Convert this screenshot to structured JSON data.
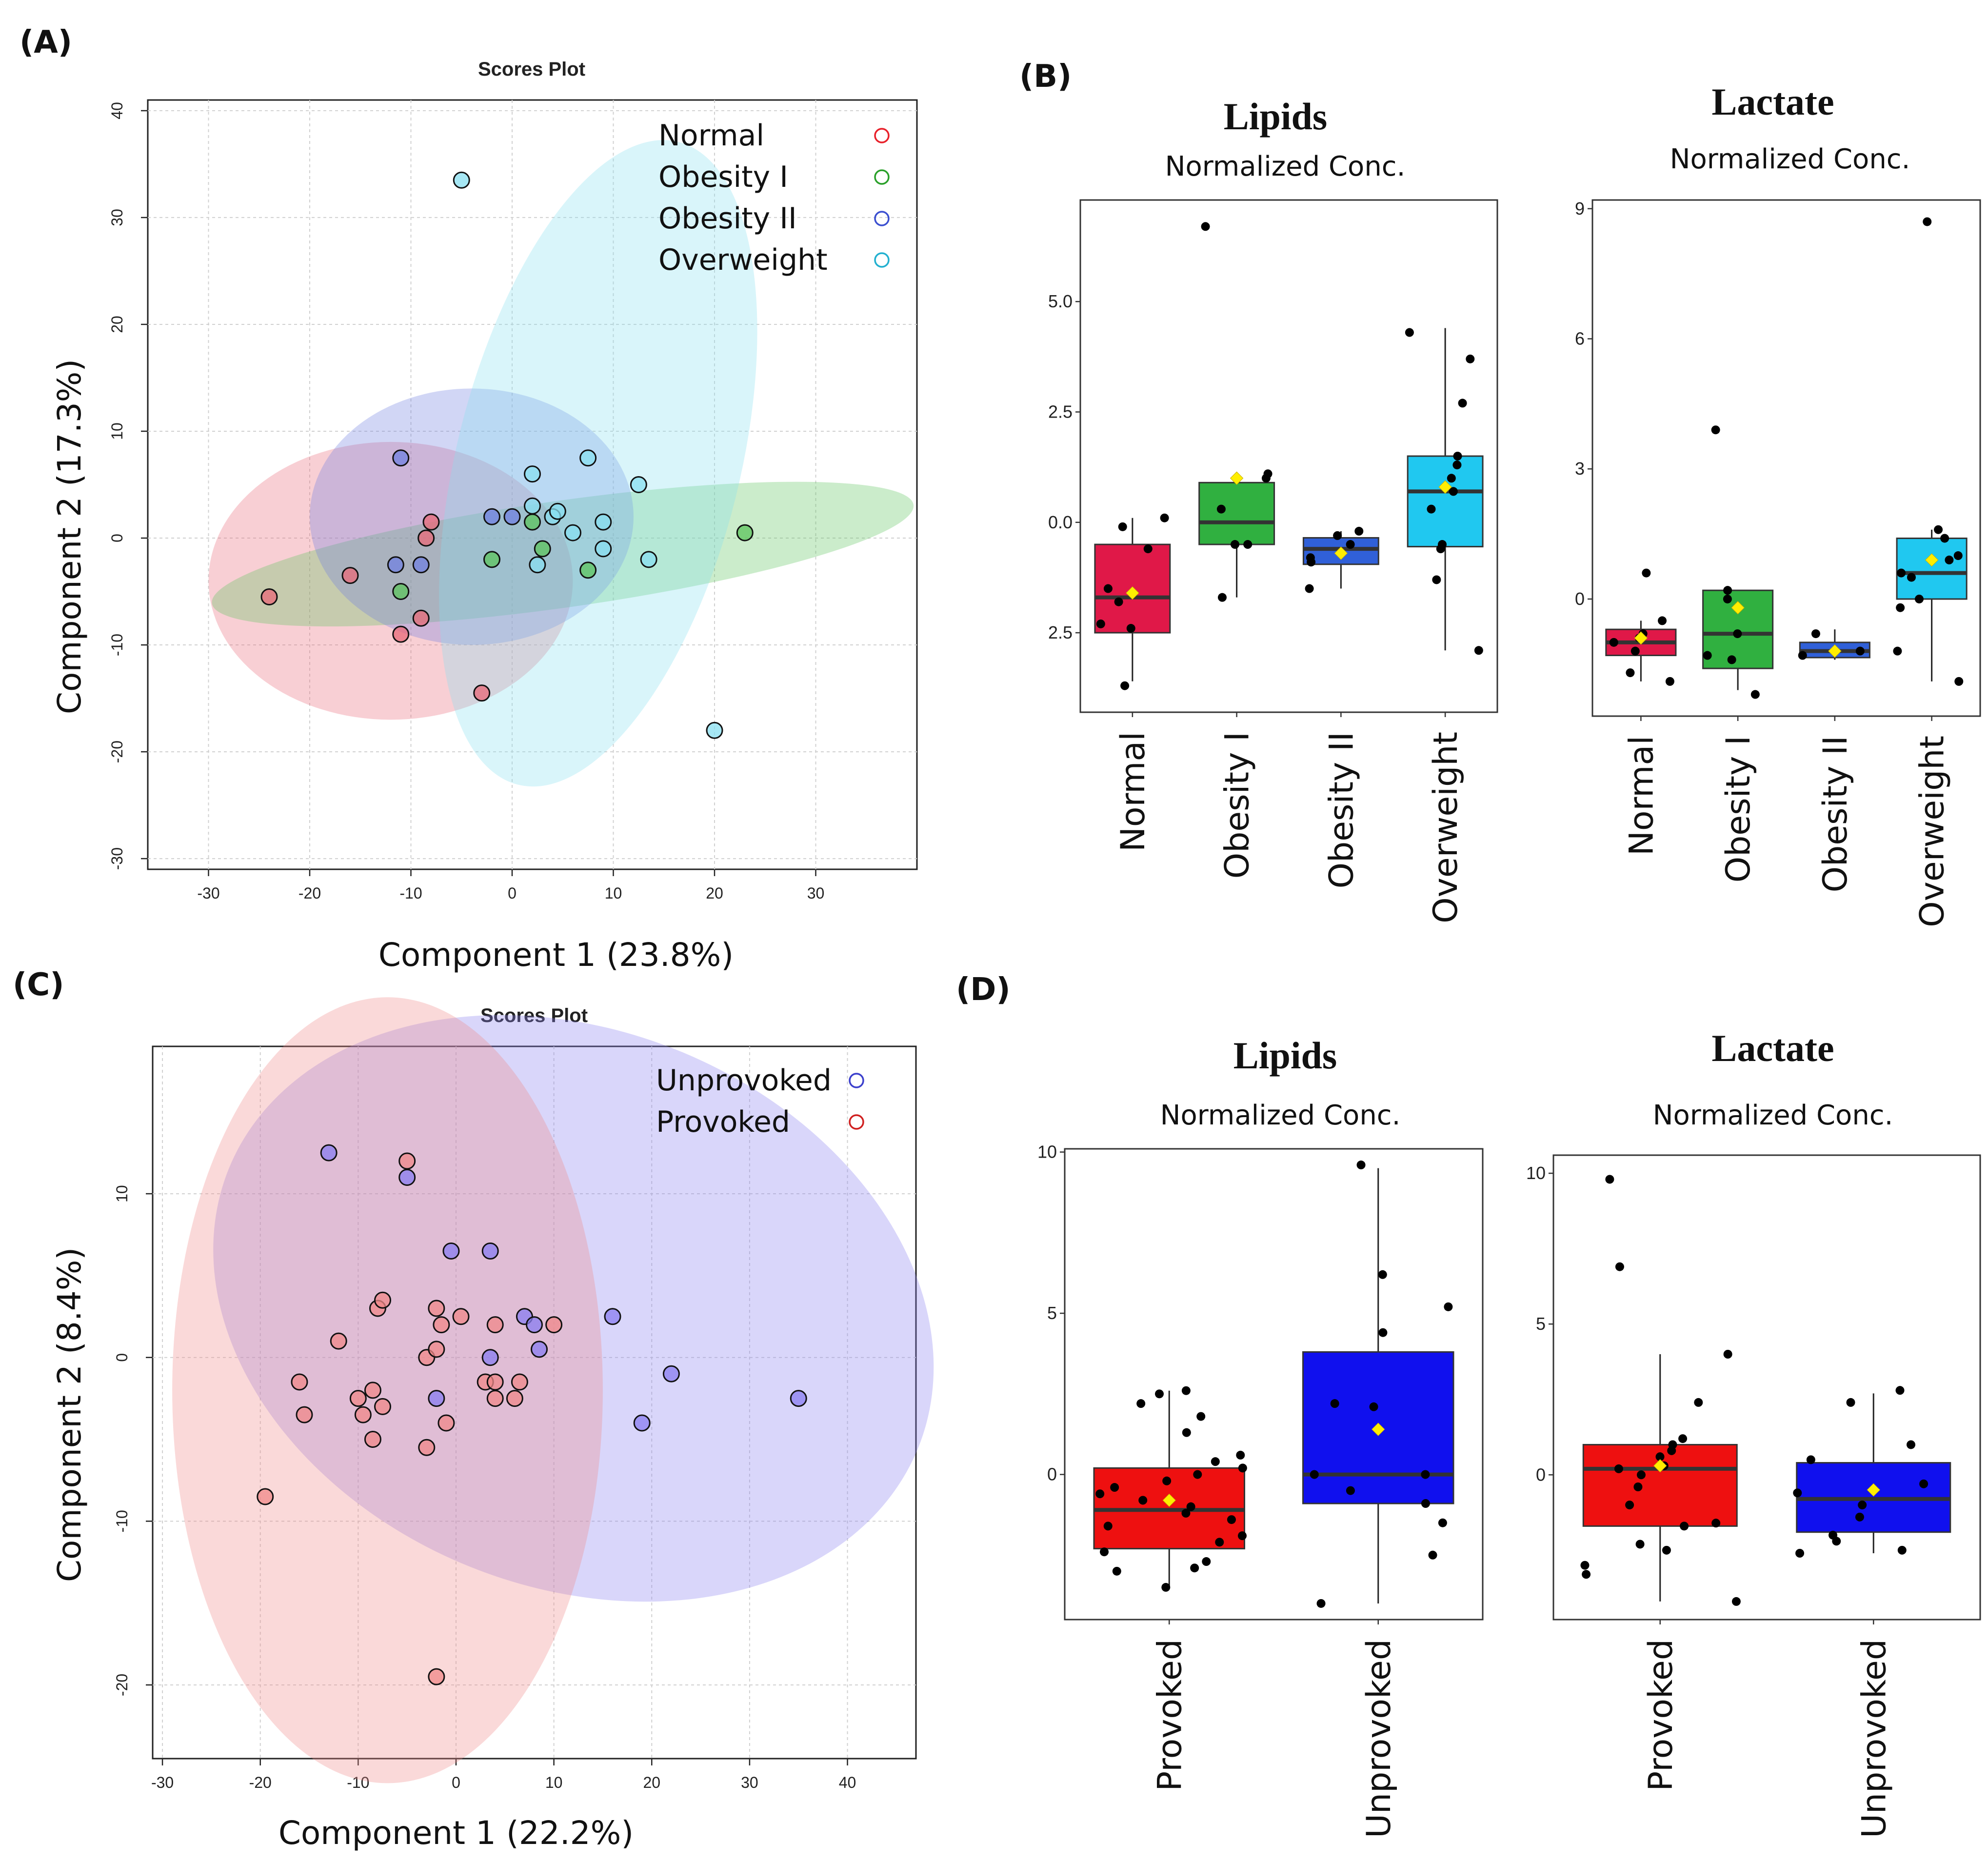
{
  "panels": {
    "A": "(A)",
    "B": "(B)",
    "C": "(C)",
    "D": "(D)"
  },
  "chart_data": [
    {
      "id": "A",
      "type": "scatter",
      "title": "Scores Plot",
      "xlabel": "Component 1 (23.8%)",
      "ylabel": "Component 2 (17.3%)",
      "xlim": [
        -36,
        40
      ],
      "ylim": [
        -31,
        41
      ],
      "xticks": [
        -30,
        -20,
        -10,
        0,
        10,
        20,
        30
      ],
      "yticks": [
        -30,
        -20,
        -10,
        0,
        10,
        20,
        30,
        40
      ],
      "legend_position": "top-right",
      "series": [
        {
          "name": "Normal",
          "color": "#e8202a",
          "fill": "#e86a78",
          "ellipse": {
            "cx": -12,
            "cy": -4,
            "rx": 18,
            "ry": 13,
            "angle": 0
          },
          "points": [
            [
              -24,
              -5.5
            ],
            [
              -16,
              -3.5
            ],
            [
              -11,
              -9
            ],
            [
              -9,
              -7.5
            ],
            [
              -8.5,
              0
            ],
            [
              -8,
              1.5
            ],
            [
              -3,
              -14.5
            ]
          ]
        },
        {
          "name": "Obesity I",
          "color": "#2aa02a",
          "fill": "#5cc45c",
          "ellipse": {
            "cx": 5,
            "cy": -1.5,
            "rx": 35,
            "ry": 5,
            "angle": -8
          },
          "points": [
            [
              -11,
              -5
            ],
            [
              -2,
              -2
            ],
            [
              2,
              1.5
            ],
            [
              3,
              -1
            ],
            [
              7.5,
              -3
            ],
            [
              23,
              0.5
            ]
          ]
        },
        {
          "name": "Obesity II",
          "color": "#3b4fd0",
          "fill": "#7080e0",
          "ellipse": {
            "cx": -4,
            "cy": 2,
            "rx": 16,
            "ry": 12,
            "angle": 0
          },
          "points": [
            [
              -11,
              7.5
            ],
            [
              -11.5,
              -2.5
            ],
            [
              -9,
              -2.5
            ],
            [
              -2,
              2
            ],
            [
              0,
              2
            ]
          ]
        },
        {
          "name": "Overweight",
          "color": "#22b0d0",
          "fill": "#88dff0",
          "ellipse": {
            "cx": 8.5,
            "cy": 7,
            "rx": 14,
            "ry": 31,
            "angle": 14
          },
          "points": [
            [
              -5,
              33.5
            ],
            [
              2,
              6
            ],
            [
              2,
              3
            ],
            [
              2.5,
              -2.5
            ],
            [
              4,
              2
            ],
            [
              4.5,
              2.5
            ],
            [
              6,
              0.5
            ],
            [
              7.5,
              7.5
            ],
            [
              9,
              1.5
            ],
            [
              9,
              -1
            ],
            [
              12.5,
              5
            ],
            [
              13.5,
              -2
            ],
            [
              20,
              -18
            ]
          ]
        }
      ]
    },
    {
      "id": "B",
      "type": "box",
      "categories": [
        "Normal",
        "Obesity I",
        "Obesity II",
        "Overweight"
      ],
      "plots": [
        {
          "title": "Lipids",
          "subtitle": "Normalized Conc.",
          "ylim": [
            -4.3,
            7.3
          ],
          "yticks": [
            {
              "v": 5,
              "label": "5.0"
            },
            {
              "v": 2.5,
              "label": "2.5"
            },
            {
              "v": 0,
              "label": "0.0"
            },
            {
              "v": -2.5,
              "label": "2.5"
            }
          ],
          "colors": [
            "#e01848",
            "#30b040",
            "#3060d8",
            "#20c8f0"
          ],
          "boxes": [
            {
              "min": -3.6,
              "q1": -2.5,
              "median": -1.7,
              "q3": -0.5,
              "max": 0.1,
              "mean": -1.6,
              "points": [
                -3.7,
                -2.4,
                -2.3,
                -1.8,
                -1.5,
                -0.6,
                0.1,
                -0.1
              ]
            },
            {
              "min": -1.7,
              "q1": -0.5,
              "median": 0,
              "q3": 0.9,
              "max": 1.1,
              "mean": 1,
              "points": [
                -1.7,
                -0.5,
                -0.5,
                0.3,
                1,
                1.1,
                6.7
              ]
            },
            {
              "min": -1.5,
              "q1": -0.95,
              "median": -0.6,
              "q3": -0.35,
              "max": -0.2,
              "mean": -0.7,
              "points": [
                -1.5,
                -0.9,
                -0.8,
                -0.5,
                -0.3,
                -0.2
              ]
            },
            {
              "min": -2.9,
              "q1": -0.55,
              "median": 0.7,
              "q3": 1.5,
              "max": 4.4,
              "mean": 0.8,
              "points": [
                -2.9,
                -1.3,
                -0.6,
                -0.5,
                0.3,
                0.7,
                1,
                1.3,
                1.5,
                2.7,
                3.7,
                4.3
              ]
            }
          ]
        },
        {
          "title": "Lactate",
          "subtitle": "Normalized Conc.",
          "ylim": [
            -2.7,
            9.2
          ],
          "yticks": [
            {
              "v": 9,
              "label": "9"
            },
            {
              "v": 6,
              "label": "6"
            },
            {
              "v": 3,
              "label": "3"
            },
            {
              "v": 0,
              "label": "0"
            }
          ],
          "colors": [
            "#e01848",
            "#30b040",
            "#3060d8",
            "#20c8f0"
          ],
          "boxes": [
            {
              "min": -1.9,
              "q1": -1.3,
              "median": -1,
              "q3": -0.7,
              "max": -0.5,
              "mean": -0.9,
              "points": [
                -1.9,
                -1.7,
                -1.2,
                -1,
                -0.9,
                -0.8,
                -0.5,
                0.6
              ]
            },
            {
              "min": -2.1,
              "q1": -1.6,
              "median": -0.8,
              "q3": 0.2,
              "max": 0.2,
              "mean": -0.2,
              "points": [
                -2.2,
                -1.4,
                -1.3,
                -0.8,
                0,
                0.2,
                3.9
              ]
            },
            {
              "min": -1.4,
              "q1": -1.35,
              "median": -1.2,
              "q3": -1.0,
              "max": -0.7,
              "mean": -1.2,
              "points": [
                -1.3,
                -1.2,
                -0.8
              ]
            },
            {
              "min": -1.9,
              "q1": 0,
              "median": 0.6,
              "q3": 1.4,
              "max": 1.6,
              "mean": 0.9,
              "points": [
                -1.9,
                -1.2,
                -0.2,
                0,
                0.5,
                0.6,
                0.9,
                1,
                1.4,
                1.6,
                8.7
              ]
            }
          ]
        }
      ]
    },
    {
      "id": "C",
      "type": "scatter",
      "title": "Scores Plot",
      "xlabel": "Component 1 (22.2%)",
      "ylabel": "Component 2 (8.4%)",
      "xlim": [
        -31,
        47
      ],
      "ylim": [
        -24.5,
        19
      ],
      "xticks": [
        -30,
        -20,
        -10,
        0,
        10,
        20,
        30,
        40
      ],
      "yticks": [
        -20,
        -10,
        0,
        10
      ],
      "legend_position": "top-right",
      "series": [
        {
          "name": "Unprovoked",
          "color": "#3b3fcc",
          "fill": "#8a7ef0",
          "ellipse": {
            "cx": 12,
            "cy": 3,
            "rx": 38,
            "ry": 17,
            "angle": 22
          },
          "points": [
            [
              -13,
              12.5
            ],
            [
              -5,
              11
            ],
            [
              -0.5,
              6.5
            ],
            [
              3.5,
              6.5
            ],
            [
              -2,
              -2.5
            ],
            [
              3.5,
              0
            ],
            [
              7,
              2.5
            ],
            [
              8,
              2
            ],
            [
              8.5,
              0.5
            ],
            [
              16,
              2.5
            ],
            [
              19,
              -4
            ],
            [
              22,
              -1
            ],
            [
              35,
              -2.5
            ]
          ]
        },
        {
          "name": "Provoked",
          "color": "#d02020",
          "fill": "#f08888",
          "ellipse": {
            "cx": -7,
            "cy": -2,
            "rx": 22,
            "ry": 24,
            "angle": 0
          },
          "points": [
            [
              -5,
              12
            ],
            [
              -12,
              1
            ],
            [
              -8,
              3
            ],
            [
              -7.5,
              3.5
            ],
            [
              -2,
              3
            ],
            [
              -1.5,
              2
            ],
            [
              0.5,
              2.5
            ],
            [
              -3,
              0
            ],
            [
              -2,
              0.5
            ],
            [
              4,
              2
            ],
            [
              10,
              2
            ],
            [
              -16,
              -1.5
            ],
            [
              -15.5,
              -3.5
            ],
            [
              -10,
              -2.5
            ],
            [
              -9.5,
              -3.5
            ],
            [
              -8.5,
              -2
            ],
            [
              -7.5,
              -3
            ],
            [
              -8.5,
              -5
            ],
            [
              -1,
              -4
            ],
            [
              -3,
              -5.5
            ],
            [
              3,
              -1.5
            ],
            [
              4,
              -1.5
            ],
            [
              6.5,
              -1.5
            ],
            [
              4,
              -2.5
            ],
            [
              6,
              -2.5
            ],
            [
              -19.5,
              -8.5
            ],
            [
              -2,
              -19.5
            ]
          ]
        }
      ]
    },
    {
      "id": "D",
      "type": "box",
      "categories": [
        "Provoked",
        "Unprovoked"
      ],
      "plots": [
        {
          "title": "Lipids",
          "subtitle": "Normalized Conc.",
          "ylim": [
            -4.5,
            10.1
          ],
          "yticks": [
            {
              "v": 10,
              "label": "10"
            },
            {
              "v": 5,
              "label": "5"
            },
            {
              "v": 0,
              "label": "0"
            }
          ],
          "colors": [
            "#ee1010",
            "#1010ee"
          ],
          "boxes": [
            {
              "min": -3.5,
              "q1": -2.3,
              "median": -1.1,
              "q3": 0.2,
              "max": 2.6,
              "mean": -0.8,
              "points": [
                -3.5,
                -3,
                -2.9,
                -2.7,
                -2.4,
                -2.1,
                -1.9,
                -1.6,
                -1.4,
                -1.2,
                -1,
                -0.8,
                -0.6,
                -0.4,
                -0.2,
                0,
                0.2,
                0.4,
                0.6,
                1.3,
                1.8,
                2.2,
                2.5,
                2.6
              ]
            },
            {
              "min": -4,
              "q1": -0.9,
              "median": 0,
              "q3": 3.8,
              "max": 9.5,
              "mean": 1.4,
              "points": [
                -4,
                -2.5,
                -1.5,
                -0.9,
                -0.5,
                0,
                0,
                2.2,
                2.1,
                4.4,
                5.2,
                6.2,
                9.6
              ]
            }
          ]
        },
        {
          "title": "Lactate",
          "subtitle": "Normalized Conc.",
          "ylim": [
            -4.8,
            10.6
          ],
          "yticks": [
            {
              "v": 10,
              "label": "10"
            },
            {
              "v": 5,
              "label": "5"
            },
            {
              "v": 0,
              "label": "0"
            }
          ],
          "colors": [
            "#ee1010",
            "#1010ee"
          ],
          "boxes": [
            {
              "min": -4.2,
              "q1": -1.7,
              "median": 0.2,
              "q3": 1,
              "max": 4,
              "mean": 0.3,
              "points": [
                -4.2,
                -3.3,
                -3,
                -2.5,
                -2.3,
                -1.7,
                -1.6,
                -1,
                -0.4,
                0,
                0.2,
                0.3,
                0.6,
                0.8,
                1,
                1.2,
                2.4,
                4,
                6.9,
                9.8
              ]
            },
            {
              "min": -2.6,
              "q1": -1.9,
              "median": -0.8,
              "q3": 0.4,
              "max": 2.7,
              "mean": -0.5,
              "points": [
                -2.6,
                -2.5,
                -2.2,
                -2,
                -1.4,
                -1,
                -0.6,
                -0.3,
                0.5,
                1,
                2.4,
                2.8
              ]
            }
          ]
        }
      ]
    }
  ]
}
